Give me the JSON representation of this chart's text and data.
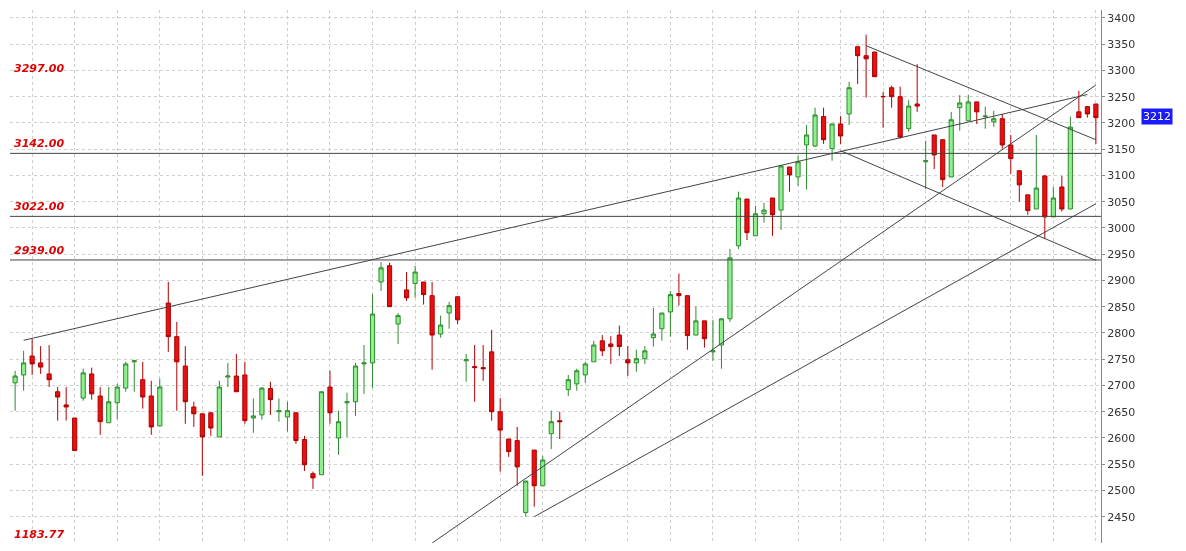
{
  "chart_data": {
    "type": "candlestick",
    "categories": [
      null,
      null,
      null,
      null,
      null,
      null,
      null,
      null,
      null,
      null,
      null,
      null,
      null,
      null,
      null,
      null,
      null,
      null,
      null,
      null,
      null,
      null,
      null,
      null,
      null,
      null,
      null,
      null,
      null,
      null,
      null,
      null,
      null,
      null,
      null,
      null,
      null,
      null,
      null,
      null,
      null,
      null,
      null,
      null,
      null,
      null,
      null,
      null,
      null,
      null,
      null,
      null,
      null,
      null,
      null,
      null,
      null,
      null,
      null,
      null,
      null,
      null,
      null,
      null,
      null,
      null,
      null,
      null,
      null,
      null,
      null,
      null,
      null,
      null,
      null,
      null,
      null,
      null,
      null,
      null,
      null,
      null,
      null,
      null,
      null,
      null,
      null,
      null,
      null,
      null,
      null,
      null,
      null,
      null,
      null,
      null,
      null,
      null,
      null,
      null,
      null,
      null,
      null,
      null,
      null,
      null,
      null,
      null,
      null,
      null,
      null,
      null,
      null,
      null,
      null,
      null,
      null,
      null,
      null,
      null,
      null,
      null,
      null,
      null,
      null,
      null,
      null,
      null
    ],
    "ohlc": [
      [
        2705,
        2728,
        2652,
        2718
      ],
      [
        2720,
        2766,
        2690,
        2743
      ],
      [
        2756,
        2789,
        2720,
        2741
      ],
      [
        2743,
        2775,
        2722,
        2735
      ],
      [
        2722,
        2777,
        2697,
        2711
      ],
      [
        2688,
        2697,
        2633,
        2678
      ],
      [
        2663,
        2697,
        2633,
        2659
      ],
      [
        2638,
        2638,
        2576,
        2576
      ],
      [
        2676,
        2732,
        2671,
        2724
      ],
      [
        2722,
        2734,
        2673,
        2684
      ],
      [
        2680,
        2697,
        2606,
        2631
      ],
      [
        2629,
        2697,
        2629,
        2669
      ],
      [
        2667,
        2703,
        2636,
        2697
      ],
      [
        2695,
        2745,
        2688,
        2741
      ],
      [
        2745,
        2749,
        2688,
        2747
      ],
      [
        2711,
        2745,
        2656,
        2678
      ],
      [
        2680,
        2709,
        2606,
        2621
      ],
      [
        2623,
        2713,
        2623,
        2697
      ],
      [
        2857,
        2897,
        2764,
        2793
      ],
      [
        2793,
        2821,
        2652,
        2745
      ],
      [
        2737,
        2775,
        2627,
        2669
      ],
      [
        2659,
        2669,
        2621,
        2646
      ],
      [
        2646,
        2646,
        2528,
        2602
      ],
      [
        2648,
        2648,
        2604,
        2619
      ],
      [
        2602,
        2709,
        2602,
        2697
      ],
      [
        2716,
        2743,
        2697,
        2718
      ],
      [
        2718,
        2760,
        2688,
        2688
      ],
      [
        2720,
        2745,
        2627,
        2633
      ],
      [
        2638,
        2675,
        2610,
        2642
      ],
      [
        2644,
        2697,
        2635,
        2695
      ],
      [
        2694,
        2707,
        2644,
        2673
      ],
      [
        2650,
        2675,
        2631,
        2652
      ],
      [
        2640,
        2669,
        2612,
        2652
      ],
      [
        2648,
        2648,
        2589,
        2595
      ],
      [
        2597,
        2604,
        2537,
        2549
      ],
      [
        2532,
        2536,
        2503,
        2524
      ],
      [
        2530,
        2688,
        2530,
        2688
      ],
      [
        2697,
        2728,
        2627,
        2648
      ],
      [
        2600,
        2652,
        2568,
        2631
      ],
      [
        2667,
        2686,
        2602,
        2669
      ],
      [
        2669,
        2743,
        2642,
        2737
      ],
      [
        2741,
        2777,
        2684,
        2743
      ],
      [
        2743,
        2874,
        2695,
        2836
      ],
      [
        2897,
        2935,
        2880,
        2924
      ],
      [
        2928,
        2934,
        2850,
        2850
      ],
      [
        2817,
        2838,
        2779,
        2833
      ],
      [
        2882,
        2916,
        2861,
        2867
      ],
      [
        2894,
        2928,
        2867,
        2916
      ],
      [
        2897,
        2897,
        2854,
        2873
      ],
      [
        2871,
        2897,
        2730,
        2796
      ],
      [
        2798,
        2833,
        2791,
        2815
      ],
      [
        2838,
        2859,
        2808,
        2852
      ],
      [
        2869,
        2869,
        2817,
        2825
      ],
      [
        2747,
        2760,
        2707,
        2749
      ],
      [
        2736,
        2777,
        2669,
        2734
      ],
      [
        2734,
        2777,
        2709,
        2732
      ],
      [
        2764,
        2806,
        2633,
        2650
      ],
      [
        2650,
        2676,
        2536,
        2615
      ],
      [
        2598,
        2598,
        2564,
        2574
      ],
      [
        2595,
        2621,
        2509,
        2545
      ],
      [
        2458,
        2518,
        2450,
        2518
      ],
      [
        2577,
        2577,
        2469,
        2509
      ],
      [
        2509,
        2566,
        2509,
        2558
      ],
      [
        2608,
        2652,
        2579,
        2631
      ],
      [
        2633,
        2650,
        2598,
        2631
      ],
      [
        2692,
        2720,
        2680,
        2711
      ],
      [
        2703,
        2732,
        2690,
        2728
      ],
      [
        2720,
        2745,
        2705,
        2741
      ],
      [
        2745,
        2785,
        2745,
        2777
      ],
      [
        2785,
        2796,
        2756,
        2766
      ],
      [
        2779,
        2794,
        2741,
        2774
      ],
      [
        2796,
        2814,
        2756,
        2774
      ],
      [
        2749,
        2775,
        2718,
        2743
      ],
      [
        2743,
        2768,
        2726,
        2751
      ],
      [
        2751,
        2775,
        2741,
        2766
      ],
      [
        2791,
        2848,
        2774,
        2798
      ],
      [
        2808,
        2838,
        2785,
        2838
      ],
      [
        2840,
        2880,
        2793,
        2873
      ],
      [
        2875,
        2913,
        2852,
        2871
      ],
      [
        2871,
        2871,
        2768,
        2795
      ],
      [
        2796,
        2850,
        2796,
        2823
      ],
      [
        2823,
        2823,
        2772,
        2789
      ],
      [
        2764,
        2825,
        2747,
        2766
      ],
      [
        2777,
        2827,
        2732,
        2827
      ],
      [
        2827,
        2960,
        2821,
        2943
      ],
      [
        2966,
        3069,
        2960,
        3057
      ],
      [
        3055,
        3055,
        2977,
        2991
      ],
      [
        2985,
        3042,
        2985,
        3027
      ],
      [
        3027,
        3048,
        3010,
        3034
      ],
      [
        3057,
        3057,
        2985,
        3025
      ],
      [
        3034,
        3118,
        2996,
        3118
      ],
      [
        3116,
        3116,
        3069,
        3101
      ],
      [
        3097,
        3137,
        3080,
        3126
      ],
      [
        3158,
        3196,
        3073,
        3177
      ],
      [
        3156,
        3229,
        3154,
        3215
      ],
      [
        3212,
        3229,
        3160,
        3168
      ],
      [
        3151,
        3198,
        3128,
        3198
      ],
      [
        3198,
        3213,
        3160,
        3175
      ],
      [
        3217,
        3278,
        3196,
        3267
      ],
      [
        3345,
        3347,
        3274,
        3328
      ],
      [
        3328,
        3368,
        3248,
        3322
      ],
      [
        3335,
        3335,
        3288,
        3288
      ],
      [
        3250,
        3259,
        3191,
        3250
      ],
      [
        3267,
        3271,
        3229,
        3250
      ],
      [
        3250,
        3269,
        3170,
        3173
      ],
      [
        3189,
        3244,
        3183,
        3232
      ],
      [
        3236,
        3312,
        3221,
        3232
      ],
      [
        3126,
        3166,
        3074,
        3128
      ],
      [
        3177,
        3177,
        3112,
        3139
      ],
      [
        3168,
        3168,
        3078,
        3092
      ],
      [
        3097,
        3221,
        3097,
        3206
      ],
      [
        3229,
        3253,
        3185,
        3238
      ],
      [
        3204,
        3253,
        3204,
        3240
      ],
      [
        3240,
        3240,
        3198,
        3221
      ],
      [
        3212,
        3231,
        3189,
        3213
      ],
      [
        3202,
        3223,
        3192,
        3208
      ],
      [
        3208,
        3217,
        3151,
        3158
      ],
      [
        3158,
        3177,
        3103,
        3132
      ],
      [
        3109,
        3109,
        3050,
        3082
      ],
      [
        3063,
        3063,
        3025,
        3033
      ],
      [
        3036,
        3177,
        3036,
        3076
      ],
      [
        3099,
        3101,
        2979,
        3021
      ],
      [
        3021,
        3078,
        3021,
        3057
      ],
      [
        3078,
        3099,
        3031,
        3036
      ],
      [
        3036,
        3212,
        3036,
        3192
      ],
      [
        3221,
        3261,
        3210,
        3210
      ],
      [
        3231,
        3232,
        3210,
        3217
      ],
      [
        3236,
        3236,
        3160,
        3210
      ]
    ],
    "series": [
      {
        "type": "line",
        "color": "#444444",
        "values": [
          null,
          2786,
          null,
          null,
          null,
          null,
          null,
          null,
          null,
          null,
          null,
          null,
          null,
          null,
          null,
          null,
          null,
          null,
          null,
          null,
          null,
          null,
          null,
          null,
          null,
          null,
          null,
          null,
          null,
          null,
          null,
          null,
          null,
          null,
          null,
          null,
          null,
          null,
          null,
          null,
          null,
          null,
          null,
          null,
          null,
          null,
          null,
          null,
          null,
          null,
          null,
          null,
          null,
          null,
          null,
          null,
          null,
          null,
          null,
          null,
          null,
          null,
          null,
          null,
          null,
          null,
          null,
          null,
          null,
          null,
          null,
          null,
          null,
          null,
          null,
          null,
          null,
          null,
          null,
          null,
          null,
          null,
          null,
          null,
          null,
          null,
          null,
          null,
          null,
          null,
          null,
          null,
          null,
          null,
          null,
          null,
          null,
          null,
          null,
          null,
          null,
          null,
          null,
          null,
          null,
          null,
          null,
          null,
          null,
          null,
          null,
          null,
          null,
          null,
          null,
          null,
          null,
          null,
          null,
          null,
          null,
          null,
          null,
          null,
          null,
          null,
          3254,
          null
        ]
      },
      {
        "type": "line",
        "color": "#444444",
        "values": [
          null,
          null,
          null,
          null,
          null,
          null,
          null,
          null,
          null,
          null,
          null,
          null,
          null,
          null,
          null,
          null,
          null,
          null,
          null,
          null,
          null,
          null,
          null,
          null,
          null,
          null,
          null,
          null,
          null,
          null,
          null,
          null,
          null,
          null,
          null,
          null,
          null,
          null,
          null,
          null,
          null,
          null,
          null,
          null,
          null,
          null,
          null,
          null,
          null,
          null,
          null,
          null,
          null,
          null,
          null,
          null,
          null,
          null,
          null,
          null,
          null,
          null,
          null,
          null,
          null,
          null,
          null,
          null,
          null,
          null,
          null,
          null,
          null,
          null,
          null,
          null,
          null,
          null,
          null,
          null,
          null,
          null,
          null,
          null,
          null,
          null,
          null,
          null,
          null,
          null,
          null,
          null,
          null,
          null,
          null,
          null,
          null,
          3147,
          null,
          null,
          null,
          null,
          null,
          null,
          null,
          null,
          null,
          null,
          null,
          null,
          null,
          null,
          null,
          null,
          null,
          null,
          null,
          null,
          null,
          null,
          null,
          null,
          null,
          null,
          null,
          null,
          null,
          2938
        ]
      },
      {
        "type": "line",
        "color": "#444444",
        "values": [
          null,
          null,
          null,
          null,
          null,
          null,
          null,
          null,
          null,
          null,
          null,
          null,
          null,
          null,
          null,
          null,
          null,
          null,
          null,
          null,
          null,
          null,
          null,
          null,
          null,
          null,
          null,
          null,
          null,
          null,
          null,
          null,
          null,
          null,
          null,
          null,
          null,
          null,
          null,
          null,
          null,
          null,
          null,
          null,
          null,
          null,
          null,
          null,
          null,
          null,
          null,
          null,
          null,
          null,
          null,
          null,
          null,
          null,
          null,
          null,
          null,
          null,
          null,
          null,
          null,
          null,
          null,
          null,
          null,
          null,
          null,
          null,
          null,
          null,
          null,
          null,
          null,
          null,
          null,
          null,
          null,
          null,
          null,
          null,
          null,
          null,
          null,
          null,
          null,
          null,
          null,
          null,
          null,
          null,
          null,
          null,
          null,
          null,
          null,
          null,
          3347,
          null,
          null,
          null,
          null,
          null,
          null,
          null,
          null,
          null,
          null,
          null,
          null,
          null,
          null,
          null,
          null,
          null,
          null,
          null,
          null,
          null,
          null,
          null,
          null,
          null,
          null,
          3168
        ]
      },
      {
        "type": "line",
        "color": "#444444",
        "values": [
          null,
          null,
          null,
          null,
          null,
          null,
          null,
          null,
          null,
          null,
          null,
          null,
          null,
          null,
          null,
          null,
          null,
          null,
          null,
          null,
          null,
          null,
          null,
          null,
          null,
          null,
          null,
          null,
          null,
          null,
          null,
          null,
          null,
          null,
          null,
          null,
          null,
          null,
          null,
          null,
          null,
          null,
          null,
          null,
          null,
          null,
          null,
          null,
          null,
          2400,
          null,
          null,
          null,
          null,
          null,
          null,
          null,
          null,
          null,
          null,
          null,
          null,
          null,
          null,
          null,
          null,
          null,
          null,
          null,
          null,
          null,
          null,
          null,
          null,
          null,
          null,
          null,
          null,
          null,
          null,
          null,
          null,
          null,
          null,
          null,
          null,
          null,
          null,
          null,
          null,
          null,
          null,
          null,
          null,
          null,
          null,
          null,
          null,
          null,
          null,
          null,
          null,
          null,
          null,
          null,
          null,
          null,
          null,
          null,
          null,
          null,
          null,
          null,
          null,
          null,
          null,
          null,
          null,
          null,
          null,
          null,
          null,
          null,
          null,
          null,
          null,
          null,
          3272
        ]
      },
      {
        "type": "line",
        "color": "#444444",
        "values": [
          null,
          null,
          null,
          null,
          null,
          null,
          null,
          null,
          null,
          null,
          null,
          null,
          null,
          null,
          null,
          null,
          null,
          null,
          null,
          null,
          null,
          null,
          null,
          null,
          null,
          null,
          null,
          null,
          null,
          null,
          null,
          null,
          null,
          null,
          null,
          null,
          null,
          null,
          null,
          null,
          null,
          null,
          null,
          null,
          null,
          null,
          null,
          null,
          null,
          null,
          null,
          null,
          null,
          null,
          null,
          null,
          null,
          null,
          null,
          null,
          null,
          2450,
          null,
          null,
          null,
          null,
          null,
          null,
          null,
          null,
          null,
          null,
          null,
          null,
          null,
          null,
          null,
          null,
          null,
          null,
          null,
          null,
          null,
          null,
          null,
          null,
          null,
          null,
          null,
          null,
          null,
          null,
          null,
          null,
          null,
          null,
          null,
          null,
          null,
          null,
          null,
          null,
          null,
          null,
          null,
          null,
          null,
          null,
          null,
          null,
          null,
          null,
          null,
          null,
          null,
          null,
          null,
          null,
          null,
          null,
          null,
          null,
          null,
          null,
          null,
          null,
          null,
          3046
        ]
      }
    ],
    "ref_lines": [
      {
        "axis": "y",
        "value": 3142,
        "label": "3142.00",
        "color": "#444444"
      },
      {
        "axis": "y",
        "value": 3022,
        "label": "3022.00",
        "color": "#444444"
      },
      {
        "axis": "y",
        "value": 2939,
        "label": "2939.00",
        "color": "#444444"
      }
    ],
    "annotations": [
      "3297.00",
      "3212",
      "1183.77"
    ],
    "ylim": [
      2400,
      3415
    ],
    "yticks": [
      2450,
      2500,
      2550,
      2600,
      2650,
      2700,
      2750,
      2800,
      2850,
      2900,
      2950,
      3000,
      3050,
      3100,
      3150,
      3200,
      3250,
      3300,
      3350,
      3400
    ],
    "grid": true,
    "tick_labels": "y"
  }
}
